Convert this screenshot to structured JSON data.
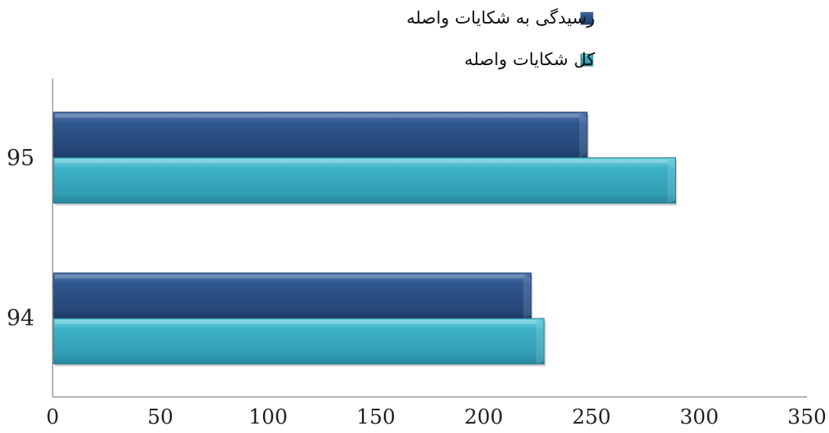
{
  "chart_data": {
    "type": "bar",
    "orientation": "horizontal",
    "title": "",
    "xlabel": "",
    "ylabel": "",
    "categories": [
      "95",
      "94"
    ],
    "series": [
      {
        "name": "رسیدگی به شکایات واصله",
        "values": [
          248,
          222
        ],
        "color": "#2d5389"
      },
      {
        "name": "کل شکایات واصله",
        "values": [
          289,
          228
        ],
        "color": "#38a8bd"
      }
    ],
    "xlim": [
      0,
      350
    ],
    "xticks": [
      "0",
      "50",
      "100",
      "150",
      "200",
      "250",
      "300",
      "350"
    ],
    "grid": false,
    "legend_position": "top-right"
  }
}
